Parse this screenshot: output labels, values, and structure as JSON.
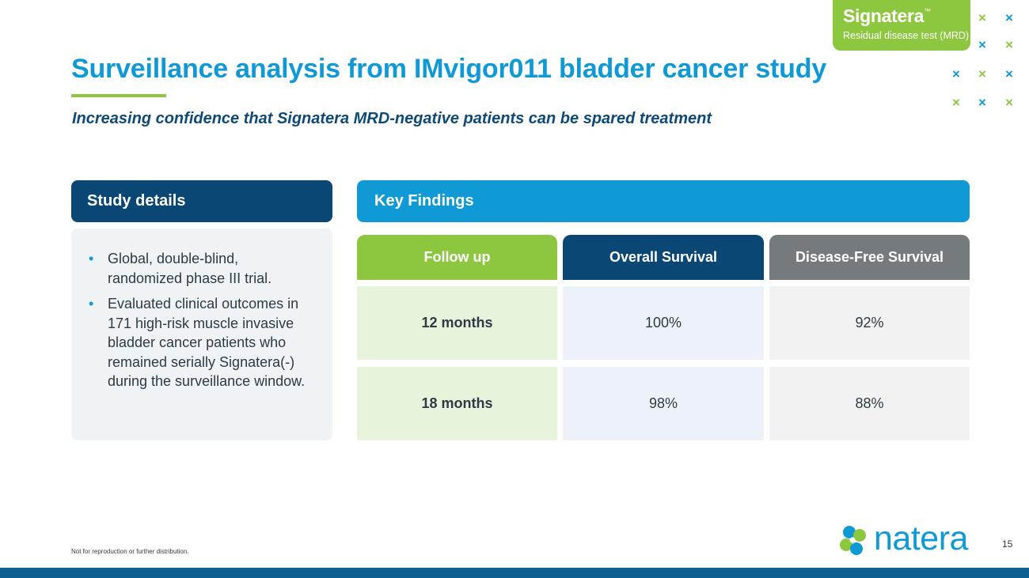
{
  "title": "Surveillance analysis from IMvigor011 bladder cancer study",
  "subtitle": "Increasing confidence that Signatera MRD-negative patients can be spared treatment",
  "badge": {
    "name": "Signatera",
    "tm": "™",
    "subtitle": "Residual disease test (MRD)"
  },
  "decor_mark": "×",
  "study_details": {
    "heading": "Study details",
    "bullets": [
      "Global, double-blind, randomized phase III trial.",
      "Evaluated clinical outcomes in 171 high-risk muscle invasive bladder cancer patients who remained serially Signatera(-) during the surveillance window."
    ]
  },
  "key_findings": {
    "heading": "Key Findings",
    "columns": [
      "Follow up",
      "Overall Survival",
      "Disease-Free Survival"
    ],
    "rows": [
      [
        "12 months",
        "100%",
        "92%"
      ],
      [
        "18 months",
        "98%",
        "88%"
      ]
    ]
  },
  "footnote": "Not for reproduction or further distribution.",
  "logo_text": "natera",
  "page_number": "15",
  "colors": {
    "green": "#8dc63f",
    "blue": "#0f9ad6",
    "navy": "#0b4775",
    "grey": "#747a7e"
  }
}
